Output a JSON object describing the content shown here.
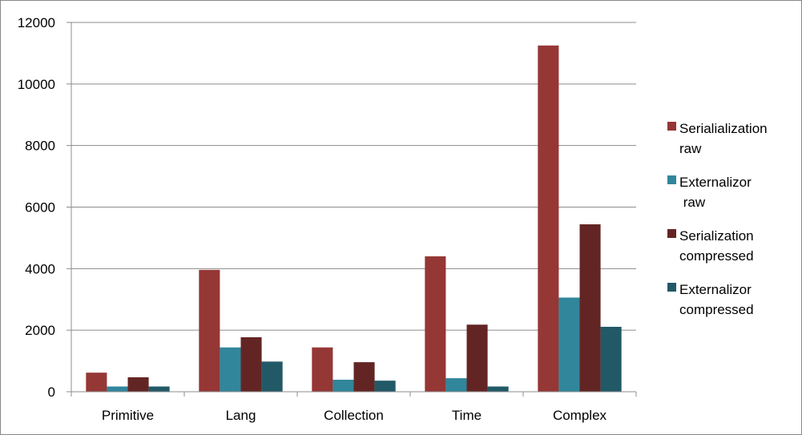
{
  "chart_data": {
    "type": "bar",
    "categories": [
      "Primitive",
      "Lang",
      "Collection",
      "Time",
      "Complex"
    ],
    "series": [
      {
        "name": "Serialialization\nraw",
        "color": "#953735",
        "values": [
          620,
          3960,
          1440,
          4400,
          11250
        ]
      },
      {
        "name": "Externalizor\n raw",
        "color": "#31869b",
        "values": [
          170,
          1440,
          390,
          440,
          3060
        ]
      },
      {
        "name": "Serialization\ncompressed",
        "color": "#632523",
        "values": [
          470,
          1770,
          960,
          2180,
          5440
        ]
      },
      {
        "name": "Externalizor\ncompressed",
        "color": "#215967",
        "values": [
          170,
          980,
          360,
          170,
          2110
        ]
      }
    ],
    "yticks": [
      0,
      2000,
      4000,
      6000,
      8000,
      10000,
      12000
    ],
    "ylim": [
      0,
      12000
    ],
    "grid": true,
    "legend": "right"
  }
}
